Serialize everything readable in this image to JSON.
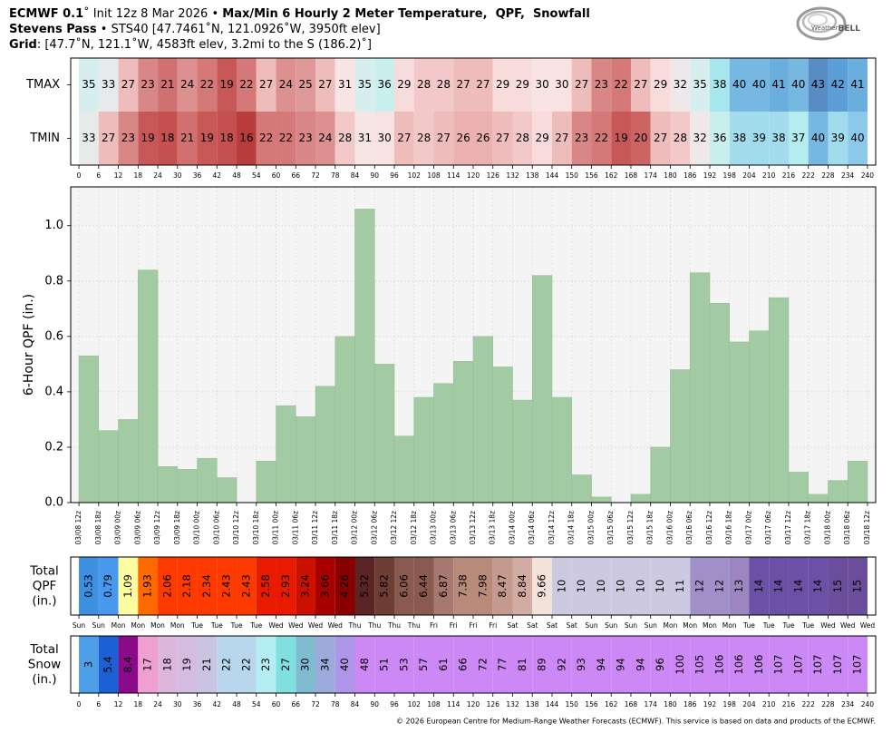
{
  "header": {
    "lines": [
      [
        {
          "text": "ECMWF 0.1",
          "bold": true
        },
        {
          "text": "˚ Init 12z 8 Mar 2026 • "
        },
        {
          "text": "Max/Min 6 Hourly 2 Meter Temperature,  QPF,  Snowfall",
          "bold": true
        }
      ],
      [
        {
          "text": "Stevens Pass",
          "bold": true
        },
        {
          "text": " • STS40 [47.7461˚N, 121.0926˚W, 3950ft elev]"
        }
      ],
      [
        {
          "text": "Grid",
          "bold": true
        },
        {
          "text": ": [47.7˚N, 121.1˚W, 4583ft elev, 3.2mi to the S (186.2)˚]"
        }
      ]
    ],
    "logo": [
      "Weather",
      "BELL"
    ]
  },
  "chart_data": [
    {
      "type": "heatmap",
      "xlim": [
        -2.5,
        242.5
      ],
      "xticks": [
        0,
        6,
        12,
        18,
        24,
        30,
        36,
        42,
        48,
        54,
        60,
        66,
        72,
        78,
        84,
        90,
        96,
        102,
        108,
        114,
        120,
        126,
        132,
        138,
        144,
        150,
        156,
        162,
        168,
        174,
        180,
        186,
        192,
        198,
        204,
        210,
        216,
        222,
        228,
        234,
        240
      ],
      "series": [
        {
          "name": "TMAX",
          "values": [
            35,
            33,
            27,
            23,
            21,
            24,
            22,
            19,
            22,
            27,
            24,
            25,
            27,
            31,
            35,
            36,
            29,
            28,
            28,
            27,
            27,
            29,
            29,
            30,
            30,
            27,
            23,
            22,
            27,
            29,
            32,
            35,
            38,
            40,
            40,
            41,
            40,
            43,
            42,
            41
          ],
          "colors": [
            "#d6eeee",
            "#e6eaea",
            "#efbcbc",
            "#d98686",
            "#d07070",
            "#dc9090",
            "#d47878",
            "#c85858",
            "#d47878",
            "#efbcbc",
            "#dc9090",
            "#df9898",
            "#efbcbc",
            "#f7e4e4",
            "#d6eeee",
            "#c8eeee",
            "#f8dcdc",
            "#f2c8c8",
            "#f2c8c8",
            "#efbcbc",
            "#efbcbc",
            "#f8dcdc",
            "#f8dcdc",
            "#f9e2e2",
            "#f9e2e2",
            "#efbcbc",
            "#d98686",
            "#d47878",
            "#efbcbc",
            "#f8dcdc",
            "#eee8e8",
            "#d6eeee",
            "#a8e6ee",
            "#76b8e2",
            "#76b8e2",
            "#6aaedd",
            "#76b8e2",
            "#5a8cc4",
            "#5c9fd8",
            "#6aaedd"
          ]
        },
        {
          "name": "TMIN",
          "values": [
            33,
            27,
            23,
            19,
            18,
            21,
            19,
            18,
            16,
            22,
            22,
            23,
            24,
            28,
            31,
            30,
            27,
            28,
            27,
            26,
            26,
            27,
            28,
            29,
            27,
            23,
            22,
            19,
            20,
            27,
            28,
            32,
            36,
            38,
            39,
            38,
            37,
            40,
            39,
            40
          ],
          "colors": [
            "#e6eaea",
            "#efbcbc",
            "#d98686",
            "#c85858",
            "#c55050",
            "#d07070",
            "#c85858",
            "#c55050",
            "#b83c3c",
            "#d47878",
            "#d47878",
            "#d98686",
            "#dc9090",
            "#f2c8c8",
            "#f7e4e4",
            "#f9e2e2",
            "#efbcbc",
            "#f2c8c8",
            "#efbcbc",
            "#ebb0b0",
            "#ebb0b0",
            "#efbcbc",
            "#f2c8c8",
            "#f8dcdc",
            "#efbcbc",
            "#d98686",
            "#d47878",
            "#c85858",
            "#cd6464",
            "#efbcbc",
            "#f2c8c8",
            "#eee8e8",
            "#c8eeee",
            "#a3dcec",
            "#a0dcec",
            "#a3dcec",
            "#b4ecef",
            "#76b8e2",
            "#a0dcec",
            "#8cc8e8"
          ]
        }
      ]
    },
    {
      "type": "bar",
      "ylabel": "6-Hour QPF (in.)",
      "color": "#a3cba3",
      "grid": true,
      "xlim": [
        -2.5,
        242.5
      ],
      "ylim": [
        0,
        1.14
      ],
      "yticks": [
        {
          "value": 0,
          "label": "0.0"
        },
        {
          "value": 0.2,
          "label": "0.2"
        },
        {
          "value": 0.4,
          "label": "0.4"
        },
        {
          "value": 0.6,
          "label": "0.6"
        },
        {
          "value": 0.8,
          "label": "0.8"
        },
        {
          "value": 1,
          "label": "1.0"
        }
      ],
      "xticks": [
        {
          "value": 0,
          "label": "03/08 12z"
        },
        {
          "value": 6,
          "label": "03/08 18z"
        },
        {
          "value": 12,
          "label": "03/09 00z"
        },
        {
          "value": 18,
          "label": "03/09 06z"
        },
        {
          "value": 24,
          "label": "03/09 12z"
        },
        {
          "value": 30,
          "label": "03/09 18z"
        },
        {
          "value": 36,
          "label": "03/10 00z"
        },
        {
          "value": 42,
          "label": "03/10 06z"
        },
        {
          "value": 48,
          "label": "03/10 12z"
        },
        {
          "value": 54,
          "label": "03/10 18z"
        },
        {
          "value": 60,
          "label": "03/11 00z"
        },
        {
          "value": 66,
          "label": "03/11 06z"
        },
        {
          "value": 72,
          "label": "03/11 12z"
        },
        {
          "value": 78,
          "label": "03/11 18z"
        },
        {
          "value": 84,
          "label": "03/12 00z"
        },
        {
          "value": 90,
          "label": "03/12 06z"
        },
        {
          "value": 96,
          "label": "03/12 12z"
        },
        {
          "value": 102,
          "label": "03/12 18z"
        },
        {
          "value": 108,
          "label": "03/13 00z"
        },
        {
          "value": 114,
          "label": "03/13 06z"
        },
        {
          "value": 120,
          "label": "03/13 12z"
        },
        {
          "value": 126,
          "label": "03/13 18z"
        },
        {
          "value": 132,
          "label": "03/14 00z"
        },
        {
          "value": 138,
          "label": "03/14 06z"
        },
        {
          "value": 144,
          "label": "03/14 12z"
        },
        {
          "value": 150,
          "label": "03/14 18z"
        },
        {
          "value": 156,
          "label": "03/15 00z"
        },
        {
          "value": 162,
          "label": "03/15 06z"
        },
        {
          "value": 168,
          "label": "03/15 12z"
        },
        {
          "value": 174,
          "label": "03/15 18z"
        },
        {
          "value": 180,
          "label": "03/16 00z"
        },
        {
          "value": 186,
          "label": "03/16 06z"
        },
        {
          "value": 192,
          "label": "03/16 12z"
        },
        {
          "value": 198,
          "label": "03/16 18z"
        },
        {
          "value": 204,
          "label": "03/17 00z"
        },
        {
          "value": 210,
          "label": "03/17 06z"
        },
        {
          "value": 216,
          "label": "03/17 12z"
        },
        {
          "value": 222,
          "label": "03/17 18z"
        },
        {
          "value": 228,
          "label": "03/18 00z"
        },
        {
          "value": 234,
          "label": "03/18 06z"
        },
        {
          "value": 240,
          "label": "03/18 12z"
        }
      ],
      "values": [
        0.53,
        0.26,
        0.3,
        0.84,
        0.13,
        0.12,
        0.16,
        0.09,
        0,
        0.15,
        0.35,
        0.31,
        0.42,
        0.6,
        1.06,
        0.5,
        0.24,
        0.38,
        0.43,
        0.51,
        0.6,
        0.49,
        0.37,
        0.82,
        0.38,
        0.1,
        0.02,
        0,
        0.03,
        0.2,
        0.48,
        0.83,
        0.72,
        0.58,
        0.62,
        0.74,
        0.11,
        0.03,
        0.08,
        0.15
      ]
    },
    {
      "type": "heatmap",
      "vertical_labels": true,
      "xlim": [
        -2.5,
        242.5
      ],
      "xticks": [
        {
          "value": 0,
          "label": "Sun"
        },
        {
          "value": 6,
          "label": "Sun"
        },
        {
          "value": 12,
          "label": "Mon"
        },
        {
          "value": 18,
          "label": "Mon"
        },
        {
          "value": 24,
          "label": "Mon"
        },
        {
          "value": 30,
          "label": "Mon"
        },
        {
          "value": 36,
          "label": "Tue"
        },
        {
          "value": 42,
          "label": "Tue"
        },
        {
          "value": 48,
          "label": "Tue"
        },
        {
          "value": 54,
          "label": "Tue"
        },
        {
          "value": 60,
          "label": "Wed"
        },
        {
          "value": 66,
          "label": "Wed"
        },
        {
          "value": 72,
          "label": "Wed"
        },
        {
          "value": 78,
          "label": "Wed"
        },
        {
          "value": 84,
          "label": "Thu"
        },
        {
          "value": 90,
          "label": "Thu"
        },
        {
          "value": 96,
          "label": "Thu"
        },
        {
          "value": 102,
          "label": "Thu"
        },
        {
          "value": 108,
          "label": "Fri"
        },
        {
          "value": 114,
          "label": "Fri"
        },
        {
          "value": 120,
          "label": "Fri"
        },
        {
          "value": 126,
          "label": "Fri"
        },
        {
          "value": 132,
          "label": "Sat"
        },
        {
          "value": 138,
          "label": "Sat"
        },
        {
          "value": 144,
          "label": "Sat"
        },
        {
          "value": 150,
          "label": "Sat"
        },
        {
          "value": 156,
          "label": "Sun"
        },
        {
          "value": 162,
          "label": "Sun"
        },
        {
          "value": 168,
          "label": "Sun"
        },
        {
          "value": 174,
          "label": "Sun"
        },
        {
          "value": 180,
          "label": "Mon"
        },
        {
          "value": 186,
          "label": "Mon"
        },
        {
          "value": 192,
          "label": "Mon"
        },
        {
          "value": 198,
          "label": "Mon"
        },
        {
          "value": 204,
          "label": "Tue"
        },
        {
          "value": 210,
          "label": "Tue"
        },
        {
          "value": 216,
          "label": "Tue"
        },
        {
          "value": 222,
          "label": "Tue"
        },
        {
          "value": 228,
          "label": "Wed"
        },
        {
          "value": 234,
          "label": "Wed"
        },
        {
          "value": 240,
          "label": "Wed"
        }
      ],
      "series": [
        {
          "label_lines": [
            "Total",
            "QPF",
            "(in.)"
          ],
          "values": [
            0.53,
            0.79,
            1.09,
            1.93,
            2.06,
            2.18,
            2.34,
            2.43,
            2.43,
            2.58,
            2.93,
            3.24,
            3.66,
            4.26,
            5.32,
            5.82,
            6.06,
            6.44,
            6.87,
            7.38,
            7.98,
            8.47,
            8.84,
            9.66,
            10,
            10,
            10,
            10,
            10,
            10,
            11,
            12,
            12,
            13,
            14,
            14,
            14,
            14,
            15,
            15
          ],
          "colors": [
            "#3d8fe0",
            "#4898ee",
            "#fdfda0",
            "#ff6a00",
            "#ff3a00",
            "#ff3a00",
            "#ff3a00",
            "#ff3a00",
            "#ff3a00",
            "#e81a00",
            "#e81a00",
            "#cc1000",
            "#a80000",
            "#880000",
            "#5c2424",
            "#6e3e34",
            "#8a5a50",
            "#8a5a50",
            "#a67870",
            "#b88a7a",
            "#b88a7a",
            "#c49a8e",
            "#d2aca2",
            "#f2e2da",
            "#cdc9e1",
            "#cdc9e1",
            "#cdc9e1",
            "#cdc9e1",
            "#cdc9e1",
            "#cdc9e1",
            "#cdc9e1",
            "#a090c8",
            "#a090c8",
            "#9c86c2",
            "#6c50a6",
            "#6c50a6",
            "#6c50a6",
            "#6c50a6",
            "#6a4e9c",
            "#6a4e9c"
          ]
        }
      ]
    },
    {
      "type": "heatmap",
      "vertical_labels": true,
      "xlim": [
        -2.5,
        242.5
      ],
      "xticks": [
        0,
        6,
        12,
        18,
        24,
        30,
        36,
        42,
        48,
        54,
        60,
        66,
        72,
        78,
        84,
        90,
        96,
        102,
        108,
        114,
        120,
        126,
        132,
        138,
        144,
        150,
        156,
        162,
        168,
        174,
        180,
        186,
        192,
        198,
        204,
        210,
        216,
        222,
        228,
        234,
        240
      ],
      "series": [
        {
          "label_lines": [
            "Total",
            "Snow",
            "(in.)"
          ],
          "values": [
            3,
            5.4,
            8.4,
            17,
            18,
            19,
            21,
            22,
            22,
            23,
            27,
            30,
            34,
            40,
            48,
            51,
            53,
            57,
            61,
            66,
            72,
            77,
            81,
            89,
            92,
            93,
            94,
            94,
            94,
            96,
            100,
            105,
            106,
            106,
            106,
            107,
            107,
            107,
            107,
            107
          ],
          "colors": [
            "#4f9ee8",
            "#1d5fd4",
            "#8a0a8a",
            "#f0a0d0",
            "#dcb6dc",
            "#d4bce0",
            "#c8c4e2",
            "#b8d6ec",
            "#b8d6ec",
            "#b4eef4",
            "#80e0e0",
            "#80bcd0",
            "#9caadc",
            "#b096e8",
            "#cc88f4",
            "#cc88f4",
            "#cc88f4",
            "#cc88f4",
            "#cc88f4",
            "#cc88f4",
            "#cc88f4",
            "#cc88f4",
            "#cc88f4",
            "#cc88f4",
            "#cc88f4",
            "#cc88f4",
            "#cc88f4",
            "#cc88f4",
            "#cc88f4",
            "#cc88f4",
            "#cc88f4",
            "#cc88f4",
            "#cc88f4",
            "#cc88f4",
            "#cc88f4",
            "#cc88f4",
            "#cc88f4",
            "#cc88f4",
            "#cc88f4",
            "#cc88f4"
          ]
        }
      ]
    }
  ],
  "footer": "© 2026 European Centre for Medium-Range Weather Forecasts (ECMWF). This service is based on data and products of the ECMWF."
}
